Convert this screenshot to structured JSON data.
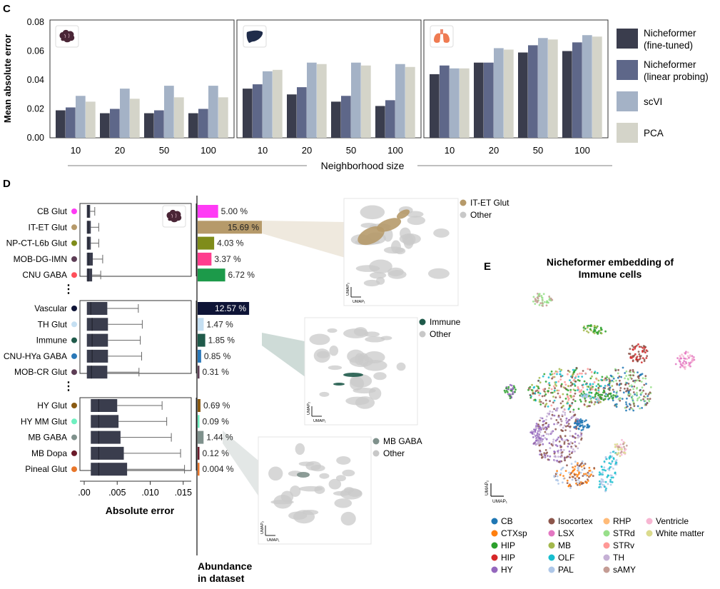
{
  "panel_c": {
    "letter": "C",
    "ylabel": "Mean absolute error",
    "xlabel": "Neighborhood size",
    "y_ticks": [
      "0.00",
      "0.02",
      "0.04",
      "0.06",
      "0.08"
    ],
    "legend": [
      "Nicheformer\n(fine-tuned)",
      "Nicheformer\n(linear probing)",
      "scVI",
      "PCA"
    ],
    "colors": [
      "#3a3d4d",
      "#5e6789",
      "#a4b2c6",
      "#d4d4c9"
    ]
  },
  "panel_d": {
    "letter": "D",
    "xlabel": "Absolute error",
    "x_ticks": [
      ".00",
      ".005",
      ".010",
      ".015"
    ],
    "ellipsis": "⋮",
    "abundance_label": "Abundance\nin dataset",
    "umap_insets": [
      {
        "legend": [
          "IT-ET Glut",
          "Other"
        ],
        "colors": [
          "#b69a6a",
          "#c8c8c8"
        ]
      },
      {
        "legend": [
          "Immune",
          "Other"
        ],
        "colors": [
          "#1f5a4a",
          "#c8c8c8"
        ]
      },
      {
        "legend": [
          "MB GABA",
          "Other"
        ],
        "colors": [
          "#7f918c",
          "#c8c8c8"
        ]
      }
    ],
    "umap_axis": [
      "UMAP₁",
      "UMAP₂"
    ]
  },
  "panel_e": {
    "letter": "E",
    "title": "Nicheformer embedding of\nImmune cells",
    "umap_axis": [
      "UMAP₁",
      "UMAP₂"
    ],
    "legend": [
      {
        "label": "CB",
        "color": "#1f77b4"
      },
      {
        "label": "CTXsp",
        "color": "#ff7f0e"
      },
      {
        "label": "HIP",
        "color": "#2ca02c"
      },
      {
        "label": "HIP",
        "color": "#d62728"
      },
      {
        "label": "HY",
        "color": "#9467bd"
      },
      {
        "label": "Isocortex",
        "color": "#8c564b"
      },
      {
        "label": "LSX",
        "color": "#e377c2"
      },
      {
        "label": "MB",
        "color": "#a3b84c"
      },
      {
        "label": "OLF",
        "color": "#17becf"
      },
      {
        "label": "PAL",
        "color": "#aec7e8"
      },
      {
        "label": "RHP",
        "color": "#ffbb78"
      },
      {
        "label": "STRd",
        "color": "#98df8a"
      },
      {
        "label": "STRv",
        "color": "#ff9896"
      },
      {
        "label": "TH",
        "color": "#c5b0d5"
      },
      {
        "label": "sAMY",
        "color": "#c49c94"
      },
      {
        "label": "Ventricle",
        "color": "#f7b6d2"
      },
      {
        "label": "White matter",
        "color": "#dbdb8d"
      }
    ]
  },
  "chart_data": [
    {
      "type": "bar",
      "panel": "C",
      "tissue": "brain",
      "categories": [
        "10",
        "20",
        "50",
        "100"
      ],
      "series": [
        {
          "name": "Nicheformer (fine-tuned)",
          "values": [
            0.019,
            0.017,
            0.017,
            0.017
          ]
        },
        {
          "name": "Nicheformer (linear probing)",
          "values": [
            0.021,
            0.02,
            0.019,
            0.02
          ]
        },
        {
          "name": "scVI",
          "values": [
            0.029,
            0.034,
            0.036,
            0.036
          ]
        },
        {
          "name": "PCA",
          "values": [
            0.025,
            0.027,
            0.028,
            0.028
          ]
        }
      ],
      "xlabel": "Neighborhood size",
      "ylabel": "Mean absolute error",
      "ylim": [
        0,
        0.08
      ]
    },
    {
      "type": "bar",
      "panel": "C",
      "tissue": "liver",
      "categories": [
        "10",
        "20",
        "50",
        "100"
      ],
      "series": [
        {
          "name": "Nicheformer (fine-tuned)",
          "values": [
            0.034,
            0.03,
            0.025,
            0.022
          ]
        },
        {
          "name": "Nicheformer (linear probing)",
          "values": [
            0.037,
            0.035,
            0.029,
            0.026
          ]
        },
        {
          "name": "scVI",
          "values": [
            0.046,
            0.052,
            0.052,
            0.051
          ]
        },
        {
          "name": "PCA",
          "values": [
            0.047,
            0.051,
            0.05,
            0.049
          ]
        }
      ],
      "xlabel": "Neighborhood size",
      "ylabel": "Mean absolute error",
      "ylim": [
        0,
        0.08
      ]
    },
    {
      "type": "bar",
      "panel": "C",
      "tissue": "lung",
      "categories": [
        "10",
        "20",
        "50",
        "100"
      ],
      "series": [
        {
          "name": "Nicheformer (fine-tuned)",
          "values": [
            0.044,
            0.052,
            0.059,
            0.06
          ]
        },
        {
          "name": "Nicheformer (linear probing)",
          "values": [
            0.05,
            0.052,
            0.064,
            0.066
          ]
        },
        {
          "name": "scVI",
          "values": [
            0.048,
            0.062,
            0.069,
            0.071
          ]
        },
        {
          "name": "PCA",
          "values": [
            0.048,
            0.061,
            0.068,
            0.07
          ]
        }
      ],
      "xlabel": "Neighborhood size",
      "ylabel": "Mean absolute error",
      "ylim": [
        0,
        0.08
      ]
    },
    {
      "type": "box",
      "panel": "D",
      "xlabel": "Absolute error",
      "xlim": [
        0,
        0.016
      ],
      "groups": [
        [
          {
            "label": "CB Glut",
            "color": "#ff3bf5",
            "whislo": 0.0004,
            "q1": 0.0004,
            "med": 0.0006,
            "q3": 0.0009,
            "whishi": 0.0016
          },
          {
            "label": "IT-ET Glut",
            "color": "#b69a6a",
            "whislo": 0.0003,
            "q1": 0.0004,
            "med": 0.0006,
            "q3": 0.001,
            "whishi": 0.0022
          },
          {
            "label": "NP-CT-L6b Glut",
            "color": "#7f8c1a",
            "whislo": 0.0003,
            "q1": 0.0004,
            "med": 0.0006,
            "q3": 0.001,
            "whishi": 0.0022
          },
          {
            "label": "MOB-DG-IMN",
            "color": "#5d3d55",
            "whislo": 0.0003,
            "q1": 0.0004,
            "med": 0.0007,
            "q3": 0.0013,
            "whishi": 0.0028
          },
          {
            "label": "CNU GABA",
            "color": "#ff4f5a",
            "whislo": 0.0003,
            "q1": 0.0004,
            "med": 0.0006,
            "q3": 0.0012,
            "whishi": 0.0025
          }
        ],
        [
          {
            "label": "Vascular",
            "color": "#0e1436",
            "whislo": 0.0003,
            "q1": 0.0004,
            "med": 0.001,
            "q3": 0.0035,
            "whishi": 0.0082
          },
          {
            "label": "TH Glut",
            "color": "#c5dff2",
            "whislo": 0.0003,
            "q1": 0.0004,
            "med": 0.0012,
            "q3": 0.0036,
            "whishi": 0.0088
          },
          {
            "label": "Immune",
            "color": "#1f5a4a",
            "whislo": 0.0003,
            "q1": 0.0004,
            "med": 0.0012,
            "q3": 0.0036,
            "whishi": 0.0085
          },
          {
            "label": "CNU-HYa GABA",
            "color": "#2a78b8",
            "whislo": 0.0003,
            "q1": 0.0004,
            "med": 0.0012,
            "q3": 0.0036,
            "whishi": 0.0087
          },
          {
            "label": "MOB-CR Glut",
            "color": "#5d3d55",
            "whislo": 0.0003,
            "q1": 0.0004,
            "med": 0.0011,
            "q3": 0.0035,
            "whishi": 0.0083
          }
        ],
        [
          {
            "label": "HY Glut",
            "color": "#8a5a12",
            "whislo": 0.0003,
            "q1": 0.001,
            "med": 0.0022,
            "q3": 0.005,
            "whishi": 0.0118
          },
          {
            "label": "HY MM Glut",
            "color": "#6ff0c0",
            "whislo": 0.0003,
            "q1": 0.001,
            "med": 0.0022,
            "q3": 0.0052,
            "whishi": 0.0125
          },
          {
            "label": "MB GABA",
            "color": "#7f918c",
            "whislo": 0.0003,
            "q1": 0.001,
            "med": 0.0022,
            "q3": 0.0055,
            "whishi": 0.0132
          },
          {
            "label": "MB Dopa",
            "color": "#6b1a2a",
            "whislo": 0.0003,
            "q1": 0.001,
            "med": 0.0022,
            "q3": 0.006,
            "whishi": 0.0146
          },
          {
            "label": "Pineal Glut",
            "color": "#e8762a",
            "whislo": 0.0003,
            "q1": 0.001,
            "med": 0.0022,
            "q3": 0.0065,
            "whishi": 0.0152
          }
        ]
      ]
    },
    {
      "type": "bar",
      "panel": "D",
      "orientation": "horizontal",
      "xlabel": "Abundance\nin dataset",
      "groups": [
        [
          {
            "label": "CB Glut",
            "value": 5.0,
            "text": "5.00 %",
            "color": "#ff3bf5"
          },
          {
            "label": "IT-ET Glut",
            "value": 15.69,
            "text": "15.69 %",
            "color": "#b69a6a"
          },
          {
            "label": "NP-CT-L6b Glut",
            "value": 4.03,
            "text": "4.03 %",
            "color": "#7f8c1a"
          },
          {
            "label": "MOB-DG-IMN",
            "value": 3.37,
            "text": "3.37 %",
            "color": "#ff3d8e"
          },
          {
            "label": "CNU GABA",
            "value": 6.72,
            "text": "6.72 %",
            "color": "#1c9a4a"
          }
        ],
        [
          {
            "label": "Vascular",
            "value": 12.57,
            "text": "12.57 %",
            "color": "#0e1436"
          },
          {
            "label": "TH Glut",
            "value": 1.47,
            "text": "1.47 %",
            "color": "#c5dff2"
          },
          {
            "label": "Immune",
            "value": 1.85,
            "text": "1.85 %",
            "color": "#1f5a4a"
          },
          {
            "label": "CNU-HYa GABA",
            "value": 0.85,
            "text": "0.85 %",
            "color": "#2a78b8"
          },
          {
            "label": "MOB-CR Glut",
            "value": 0.31,
            "text": "0.31 %",
            "color": "#5d3d55"
          }
        ],
        [
          {
            "label": "HY Glut",
            "value": 0.69,
            "text": "0.69 %",
            "color": "#8a5a12"
          },
          {
            "label": "HY MM Glut",
            "value": 0.09,
            "text": "0.09 %",
            "color": "#6ff0c0"
          },
          {
            "label": "MB GABA",
            "value": 1.44,
            "text": "1.44 %",
            "color": "#7f918c"
          },
          {
            "label": "MB Dopa",
            "value": 0.12,
            "text": "0.12 %",
            "color": "#6b1a2a"
          },
          {
            "label": "Pineal Glut",
            "value": 0.004,
            "text": "0.004 %",
            "color": "#e8762a"
          }
        ]
      ]
    }
  ]
}
